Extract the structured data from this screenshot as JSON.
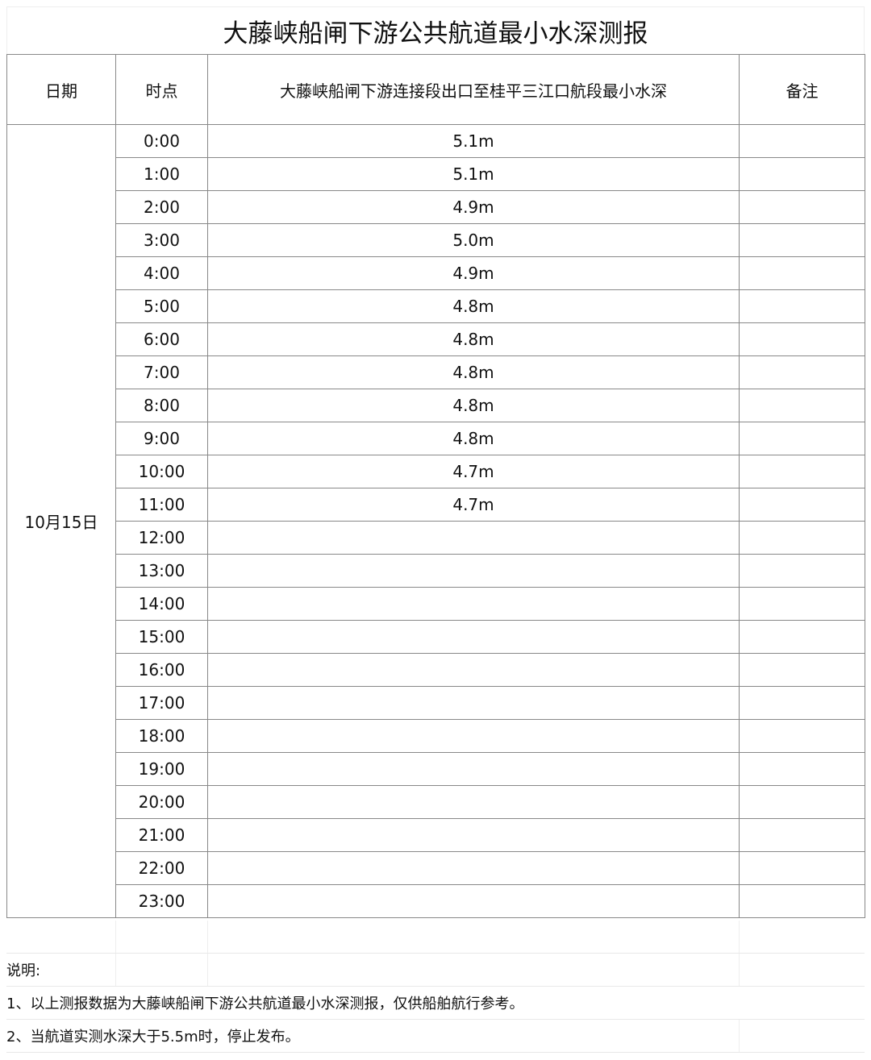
{
  "title": "大藤峡船闸下游公共航道最小水深测报",
  "headers": {
    "date": "日期",
    "time": "时点",
    "depth": "大藤峡船闸下游连接段出口至桂平三江口航段最小水深",
    "remark": "备注"
  },
  "date": "10月15日",
  "rows": [
    {
      "time": "0:00",
      "depth": "5.1m"
    },
    {
      "time": "1:00",
      "depth": "5.1m"
    },
    {
      "time": "2:00",
      "depth": "4.9m"
    },
    {
      "time": "3:00",
      "depth": "5.0m"
    },
    {
      "time": "4:00",
      "depth": "4.9m"
    },
    {
      "time": "5:00",
      "depth": "4.8m"
    },
    {
      "time": "6:00",
      "depth": "4.8m"
    },
    {
      "time": "7:00",
      "depth": "4.8m"
    },
    {
      "time": "8:00",
      "depth": "4.8m"
    },
    {
      "time": "9:00",
      "depth": "4.8m"
    },
    {
      "time": "10:00",
      "depth": "4.7m"
    },
    {
      "time": "11:00",
      "depth": "4.7m"
    },
    {
      "time": "12:00",
      "depth": ""
    },
    {
      "time": "13:00",
      "depth": ""
    },
    {
      "time": "14:00",
      "depth": ""
    },
    {
      "time": "15:00",
      "depth": ""
    },
    {
      "time": "16:00",
      "depth": ""
    },
    {
      "time": "17:00",
      "depth": ""
    },
    {
      "time": "18:00",
      "depth": ""
    },
    {
      "time": "19:00",
      "depth": ""
    },
    {
      "time": "20:00",
      "depth": ""
    },
    {
      "time": "21:00",
      "depth": ""
    },
    {
      "time": "22:00",
      "depth": ""
    },
    {
      "time": "23:00",
      "depth": ""
    }
  ],
  "notes": {
    "heading": "说明:",
    "items": [
      "1、以上测报数据为大藤峡船闸下游公共航道最小水深测报，仅供船舶航行参考。",
      "2、当航道实测水深大于5.5m时，停止发布。"
    ]
  }
}
